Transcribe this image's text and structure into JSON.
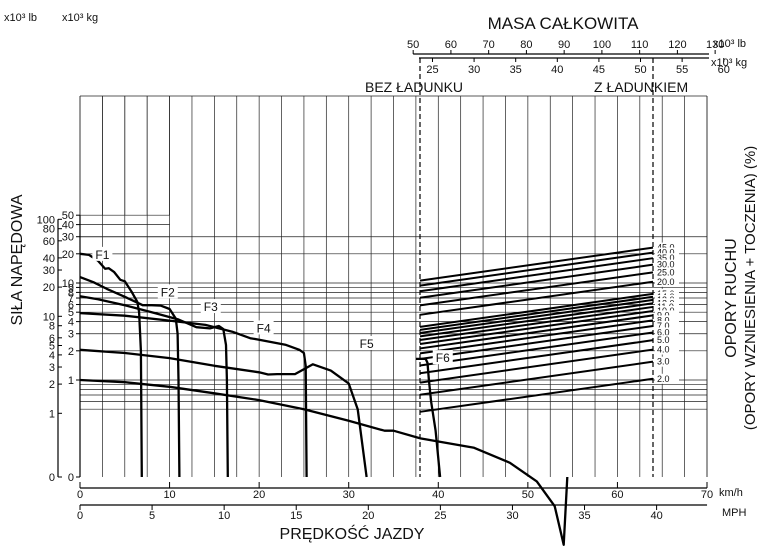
{
  "chart_data": {
    "type": "line",
    "title": "MASA CAŁKOWITA",
    "xlabel": "PRĘDKOŚĆ JAZDY",
    "ylabel": "SIŁA NAPĘDOWA",
    "right_label_1": "OPORY RUCHU",
    "right_label_2": "(OPORY WZNIESIENIA + TOCZENIA) (%)",
    "x_unit_kmh": "km/h",
    "x_unit_mph": "MPH",
    "x_ticks_kmh": [
      "0",
      "10",
      "20",
      "30",
      "40",
      "50",
      "60",
      "70"
    ],
    "x_ticks_mph": [
      "0",
      "5",
      "10",
      "15",
      "20",
      "25",
      "30",
      "35",
      "40"
    ],
    "y_unit_lb": "x10³ lb",
    "y_unit_kg": "x10³ kg",
    "y_ticks_lb": [
      {
        "label": "100",
        "v": 100
      },
      {
        "label": "80",
        "v": 80
      },
      {
        "label": "60",
        "v": 60
      },
      {
        "label": "40",
        "v": 40
      },
      {
        "label": "30",
        "v": 30
      },
      {
        "label": "20",
        "v": 20
      },
      {
        "label": "10",
        "v": 10
      },
      {
        "label": "8",
        "v": 8
      },
      {
        "label": "6",
        "v": 6
      },
      {
        "label": "5",
        "v": 5
      },
      {
        "label": "4",
        "v": 4
      },
      {
        "label": "3",
        "v": 3
      },
      {
        "label": "2",
        "v": 2
      },
      {
        "label": "1",
        "v": 1
      },
      {
        "label": "0",
        "v": 0
      }
    ],
    "y_ticks_kg": [
      {
        "label": "50",
        "v": 50
      },
      {
        "label": "40",
        "v": 40
      },
      {
        "label": "30",
        "v": 30
      },
      {
        "label": "20",
        "v": 20
      },
      {
        "label": "10",
        "v": 10
      },
      {
        "label": "9",
        "v": 9
      },
      {
        "label": "8",
        "v": 8
      },
      {
        "label": "7",
        "v": 7
      },
      {
        "label": "6",
        "v": 6
      },
      {
        "label": "5",
        "v": 5
      },
      {
        "label": "4",
        "v": 4
      },
      {
        "label": "3",
        "v": 3
      },
      {
        "label": "2",
        "v": 2
      },
      {
        "label": "1",
        "v": 1
      },
      {
        "label": "0",
        "v": 0
      }
    ],
    "mass_unit_lb": "x10³ lb",
    "mass_unit_kg": "x10³ kg",
    "mass_ticks_lb": [
      {
        "label": "50",
        "v": 50
      },
      {
        "label": "60",
        "v": 60
      },
      {
        "label": "70",
        "v": 70
      },
      {
        "label": "80",
        "v": 80
      },
      {
        "label": "90",
        "v": 90
      },
      {
        "label": "100",
        "v": 100
      },
      {
        "label": "110",
        "v": 110
      },
      {
        "label": "120",
        "v": 120
      },
      {
        "label": "130",
        "v": 130
      }
    ],
    "mass_ticks_kg": [
      {
        "label": "25",
        "v": 25
      },
      {
        "label": "30",
        "v": 30
      },
      {
        "label": "35",
        "v": 35
      },
      {
        "label": "40",
        "v": 40
      },
      {
        "label": "45",
        "v": 45
      },
      {
        "label": "50",
        "v": 50
      },
      {
        "label": "55",
        "v": 55
      },
      {
        "label": "60",
        "v": 60
      }
    ],
    "mass_empty_kg": 23.5,
    "mass_loaded_kg": 51.5,
    "empty_label": "BEZ ŁADUNKU",
    "loaded_label": "Z ŁADUNKIEM",
    "resistance_labels": [
      "45.0",
      "40.0",
      "35.0",
      "30.0",
      "25.0",
      "20.0",
      "15.0",
      "14.0",
      "13.0",
      "12.0",
      "11.0",
      "10.0",
      "9.0",
      "8.0",
      "7.0",
      "6.0",
      "5.0",
      "4.0",
      "3.0",
      "2.0"
    ],
    "resistance_values": [
      45,
      40,
      35,
      30,
      25,
      20,
      15,
      14,
      13,
      12,
      11,
      10,
      9,
      8,
      7,
      6,
      5,
      4,
      3,
      2
    ],
    "series": [
      {
        "name": "F1",
        "label_at": [
          2.5,
          19.5
        ],
        "points": [
          [
            0,
            20
          ],
          [
            1,
            19.5
          ],
          [
            2,
            17
          ],
          [
            2.8,
            14
          ],
          [
            3.2,
            14.2
          ],
          [
            3.8,
            13
          ],
          [
            4.5,
            10.8
          ],
          [
            5,
            10.4
          ],
          [
            5.8,
            8
          ],
          [
            6.4,
            6.4
          ],
          [
            6.6,
            5
          ],
          [
            6.8,
            2
          ],
          [
            6.9,
            0
          ]
        ]
      },
      {
        "name": "F2",
        "label_at": [
          9.8,
          8.0
        ],
        "points": [
          [
            0,
            11.5
          ],
          [
            1.5,
            10.2
          ],
          [
            3,
            8.7
          ],
          [
            5,
            7.2
          ],
          [
            6.5,
            6.2
          ],
          [
            7,
            5.9
          ],
          [
            8,
            5.9
          ],
          [
            9,
            5.85
          ],
          [
            10,
            5.4
          ],
          [
            10.7,
            4.3
          ],
          [
            10.9,
            3
          ],
          [
            11,
            1
          ],
          [
            11.1,
            0
          ]
        ]
      },
      {
        "name": "F3",
        "label_at": [
          14.6,
          5.65
        ],
        "points": [
          [
            0,
            7.3
          ],
          [
            2,
            6.8
          ],
          [
            5,
            5.9
          ],
          [
            8,
            5
          ],
          [
            11,
            4.2
          ],
          [
            13,
            3.5
          ],
          [
            14.5,
            3.4
          ],
          [
            15.5,
            3.6
          ],
          [
            16,
            3.35
          ],
          [
            16.3,
            2.3
          ],
          [
            16.4,
            1
          ],
          [
            16.5,
            0
          ]
        ]
      },
      {
        "name": "F4",
        "label_at": [
          20.5,
          3.4
        ],
        "points": [
          [
            0,
            4.9
          ],
          [
            5,
            4.6
          ],
          [
            10,
            4.1
          ],
          [
            14,
            3.7
          ],
          [
            17,
            3.15
          ],
          [
            19,
            2.7
          ],
          [
            20,
            2.6
          ],
          [
            23,
            2.3
          ],
          [
            24.5,
            2.05
          ],
          [
            25,
            1.9
          ],
          [
            25.2,
            1.4
          ],
          [
            25.3,
            0
          ]
        ]
      },
      {
        "name": "F5",
        "label_at": [
          32,
          2.35
        ],
        "points": [
          [
            0,
            2.05
          ],
          [
            5,
            1.9
          ],
          [
            10,
            1.68
          ],
          [
            15,
            1.4
          ],
          [
            20,
            1.2
          ],
          [
            21,
            1.14
          ],
          [
            22,
            1.15
          ],
          [
            24,
            1.15
          ],
          [
            26,
            1.45
          ],
          [
            28,
            1.25
          ],
          [
            30,
            0.92
          ],
          [
            31,
            0.5
          ],
          [
            32,
            0
          ]
        ]
      },
      {
        "name": "F6",
        "label_at": [
          40.5,
          1.68
        ],
        "points": [
          [
            0,
            1.0
          ],
          [
            5,
            0.95
          ],
          [
            10,
            0.85
          ],
          [
            15,
            0.73
          ],
          [
            20,
            0.62
          ],
          [
            25,
            0.5
          ],
          [
            30,
            0.38
          ],
          [
            34,
            0.3
          ],
          [
            35,
            0.3
          ],
          [
            38,
            0.25
          ],
          [
            44,
            0.2
          ],
          [
            48,
            0.14
          ],
          [
            51,
            0.09
          ],
          [
            53,
            0.05
          ],
          [
            54,
            0.02
          ],
          [
            54.4,
            0
          ]
        ]
      },
      {
        "name": "",
        "points": [
          [
            37.5,
            1.65
          ],
          [
            38.6,
            1.65
          ],
          [
            38.8,
            1.5
          ],
          [
            38.95,
            1.0
          ],
          [
            39.2,
            0.6
          ],
          [
            39.7,
            0.3
          ],
          [
            40.2,
            0
          ]
        ]
      }
    ]
  }
}
